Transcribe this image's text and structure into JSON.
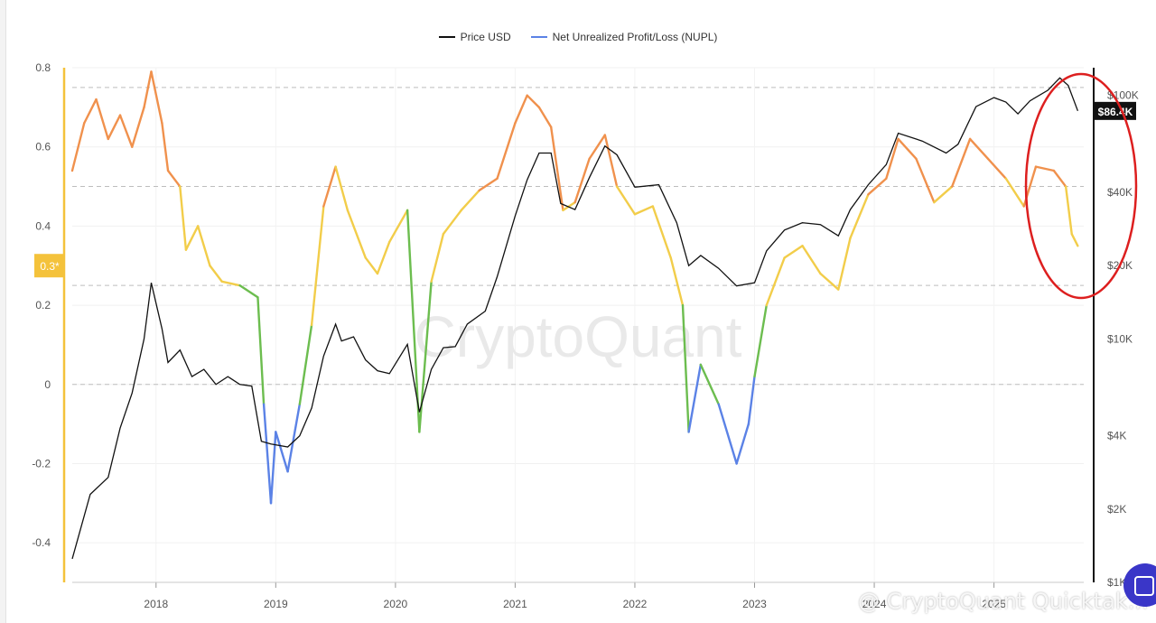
{
  "legend": [
    {
      "label": "Price USD",
      "color": "#111111"
    },
    {
      "label": "Net Unrealized Profit/Loss (NUPL)",
      "color": "#5b82e6"
    }
  ],
  "watermark": "CryptoQuant",
  "footer_watermark": "@ CryptoQuant Quicktak...",
  "current_price_label": "$86.4K",
  "current_nupl_label": "0.3*",
  "colors": {
    "price": "#111111",
    "nupl_capitulation": "#5b82e6",
    "nupl_hope_fear": "#6cbd4f",
    "nupl_optimism": "#f2cd4a",
    "nupl_belief": "#f0914d",
    "nupl_euphoria": "#e0504a",
    "left_axis_accent": "#f4c23b",
    "annotation_circle": "#dd1f1f"
  },
  "chart_data": {
    "type": "line",
    "x_label": "",
    "y_left_label": "",
    "y_right_label": "",
    "x_range": [
      2017.3,
      2025.75
    ],
    "x_ticks": [
      {
        "label": "2018",
        "x": 2018.0
      },
      {
        "label": "2019",
        "x": 2019.0
      },
      {
        "label": "2020",
        "x": 2020.0
      },
      {
        "label": "2021",
        "x": 2021.0
      },
      {
        "label": "2022",
        "x": 2022.0
      },
      {
        "label": "2023",
        "x": 2023.0
      },
      {
        "label": "2024",
        "x": 2024.0
      },
      {
        "label": "2025",
        "x": 2025.0
      }
    ],
    "y_left": {
      "range": [
        -0.5,
        0.8
      ],
      "ticks": [
        0.8,
        0.6,
        0.4,
        0.2,
        0,
        -0.2,
        -0.4
      ],
      "tick_labels": [
        "0.8",
        "0.6",
        "0.4",
        "0.2",
        "0",
        "-0.2",
        "-0.4"
      ]
    },
    "y_right": {
      "scale": "log",
      "range": [
        1000,
        130000
      ],
      "ticks": [
        100000,
        40000,
        20000,
        10000,
        4000,
        2000,
        1000
      ],
      "tick_labels": [
        "$100K",
        "$40K",
        "$20K",
        "$10K",
        "$4K",
        "$2K",
        "$1K"
      ]
    },
    "reference_lines": [
      0.75,
      0.5,
      0.25,
      0
    ],
    "series": [
      {
        "name": "Price USD",
        "axis": "right",
        "points": [
          [
            2017.3,
            1250
          ],
          [
            2017.45,
            2300
          ],
          [
            2017.6,
            2700
          ],
          [
            2017.7,
            4300
          ],
          [
            2017.8,
            6000
          ],
          [
            2017.9,
            10000
          ],
          [
            2017.96,
            17000
          ],
          [
            2018.05,
            11000
          ],
          [
            2018.1,
            8000
          ],
          [
            2018.2,
            9000
          ],
          [
            2018.3,
            7000
          ],
          [
            2018.4,
            7500
          ],
          [
            2018.5,
            6500
          ],
          [
            2018.6,
            7000
          ],
          [
            2018.7,
            6500
          ],
          [
            2018.8,
            6400
          ],
          [
            2018.88,
            3800
          ],
          [
            2018.96,
            3700
          ],
          [
            2019.1,
            3600
          ],
          [
            2019.2,
            4000
          ],
          [
            2019.3,
            5200
          ],
          [
            2019.4,
            8500
          ],
          [
            2019.5,
            11500
          ],
          [
            2019.55,
            9800
          ],
          [
            2019.65,
            10200
          ],
          [
            2019.75,
            8200
          ],
          [
            2019.85,
            7400
          ],
          [
            2019.95,
            7200
          ],
          [
            2020.1,
            9500
          ],
          [
            2020.2,
            5000
          ],
          [
            2020.3,
            7500
          ],
          [
            2020.4,
            9200
          ],
          [
            2020.5,
            9300
          ],
          [
            2020.6,
            11500
          ],
          [
            2020.75,
            13000
          ],
          [
            2020.85,
            18000
          ],
          [
            2021.0,
            32000
          ],
          [
            2021.1,
            45000
          ],
          [
            2021.2,
            58000
          ],
          [
            2021.3,
            58000
          ],
          [
            2021.38,
            36000
          ],
          [
            2021.5,
            34000
          ],
          [
            2021.62,
            46000
          ],
          [
            2021.75,
            62000
          ],
          [
            2021.85,
            57000
          ],
          [
            2022.0,
            42000
          ],
          [
            2022.2,
            43000
          ],
          [
            2022.35,
            30000
          ],
          [
            2022.45,
            20000
          ],
          [
            2022.55,
            22000
          ],
          [
            2022.7,
            19500
          ],
          [
            2022.85,
            16500
          ],
          [
            2023.0,
            17000
          ],
          [
            2023.1,
            23000
          ],
          [
            2023.25,
            28000
          ],
          [
            2023.4,
            30000
          ],
          [
            2023.55,
            29500
          ],
          [
            2023.7,
            26500
          ],
          [
            2023.8,
            34000
          ],
          [
            2023.95,
            43000
          ],
          [
            2024.1,
            52000
          ],
          [
            2024.2,
            70000
          ],
          [
            2024.4,
            65000
          ],
          [
            2024.6,
            58000
          ],
          [
            2024.7,
            63000
          ],
          [
            2024.85,
            90000
          ],
          [
            2025.0,
            98000
          ],
          [
            2025.1,
            94000
          ],
          [
            2025.2,
            84000
          ],
          [
            2025.3,
            95000
          ],
          [
            2025.45,
            105000
          ],
          [
            2025.55,
            118000
          ],
          [
            2025.62,
            110000
          ],
          [
            2025.7,
            86400
          ]
        ]
      },
      {
        "name": "Net Unrealized Profit/Loss (NUPL)",
        "axis": "left",
        "points": [
          [
            2017.3,
            0.54
          ],
          [
            2017.4,
            0.66
          ],
          [
            2017.5,
            0.72
          ],
          [
            2017.6,
            0.62
          ],
          [
            2017.7,
            0.68
          ],
          [
            2017.8,
            0.6
          ],
          [
            2017.9,
            0.7
          ],
          [
            2017.96,
            0.79
          ],
          [
            2018.05,
            0.66
          ],
          [
            2018.1,
            0.54
          ],
          [
            2018.2,
            0.5
          ],
          [
            2018.25,
            0.34
          ],
          [
            2018.35,
            0.4
          ],
          [
            2018.45,
            0.3
          ],
          [
            2018.55,
            0.26
          ],
          [
            2018.7,
            0.25
          ],
          [
            2018.85,
            0.22
          ],
          [
            2018.9,
            -0.05
          ],
          [
            2018.96,
            -0.3
          ],
          [
            2019.0,
            -0.12
          ],
          [
            2019.1,
            -0.22
          ],
          [
            2019.2,
            -0.05
          ],
          [
            2019.3,
            0.15
          ],
          [
            2019.4,
            0.45
          ],
          [
            2019.5,
            0.55
          ],
          [
            2019.6,
            0.44
          ],
          [
            2019.75,
            0.32
          ],
          [
            2019.85,
            0.28
          ],
          [
            2019.95,
            0.36
          ],
          [
            2020.1,
            0.44
          ],
          [
            2020.2,
            -0.12
          ],
          [
            2020.3,
            0.26
          ],
          [
            2020.4,
            0.38
          ],
          [
            2020.55,
            0.44
          ],
          [
            2020.7,
            0.49
          ],
          [
            2020.85,
            0.52
          ],
          [
            2021.0,
            0.66
          ],
          [
            2021.1,
            0.73
          ],
          [
            2021.2,
            0.7
          ],
          [
            2021.3,
            0.65
          ],
          [
            2021.4,
            0.44
          ],
          [
            2021.5,
            0.46
          ],
          [
            2021.62,
            0.57
          ],
          [
            2021.75,
            0.63
          ],
          [
            2021.85,
            0.5
          ],
          [
            2022.0,
            0.43
          ],
          [
            2022.15,
            0.45
          ],
          [
            2022.3,
            0.32
          ],
          [
            2022.4,
            0.2
          ],
          [
            2022.45,
            -0.12
          ],
          [
            2022.55,
            0.05
          ],
          [
            2022.7,
            -0.05
          ],
          [
            2022.85,
            -0.2
          ],
          [
            2022.95,
            -0.1
          ],
          [
            2023.0,
            0.02
          ],
          [
            2023.1,
            0.2
          ],
          [
            2023.25,
            0.32
          ],
          [
            2023.4,
            0.35
          ],
          [
            2023.55,
            0.28
          ],
          [
            2023.7,
            0.24
          ],
          [
            2023.8,
            0.37
          ],
          [
            2023.95,
            0.48
          ],
          [
            2024.1,
            0.52
          ],
          [
            2024.2,
            0.62
          ],
          [
            2024.35,
            0.57
          ],
          [
            2024.5,
            0.46
          ],
          [
            2024.65,
            0.5
          ],
          [
            2024.8,
            0.62
          ],
          [
            2024.95,
            0.57
          ],
          [
            2025.1,
            0.52
          ],
          [
            2025.25,
            0.45
          ],
          [
            2025.35,
            0.55
          ],
          [
            2025.5,
            0.54
          ],
          [
            2025.6,
            0.5
          ],
          [
            2025.65,
            0.38
          ],
          [
            2025.7,
            0.35
          ]
        ]
      }
    ]
  }
}
